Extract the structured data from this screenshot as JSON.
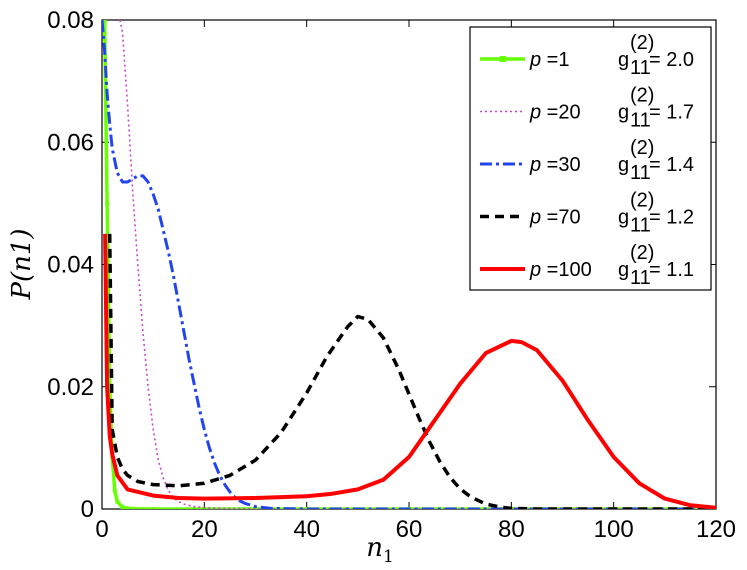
{
  "chart_data": {
    "type": "line",
    "xlabel": "n1",
    "ylabel": "P(n1)",
    "xlim": [
      0,
      120
    ],
    "ylim": [
      0,
      0.08
    ],
    "x_ticks": [
      0,
      20,
      40,
      60,
      80,
      100,
      120
    ],
    "y_ticks": [
      0,
      0.02,
      0.04,
      0.06,
      0.08
    ],
    "x_tick_labels": [
      "0",
      "20",
      "40",
      "60",
      "80",
      "100",
      "120"
    ],
    "y_tick_labels": [
      "0",
      "0.02",
      "0.04",
      "0.06",
      "0.08"
    ],
    "grid": false,
    "legend_position": "top-right",
    "series": [
      {
        "p_label": "p =1",
        "g2_label": "2.0",
        "color": "#66ff00",
        "style": "solid-marker",
        "x": [
          0,
          0.5,
          1,
          1.5,
          2,
          2.5,
          3,
          4,
          5,
          6,
          8,
          10,
          20,
          30,
          40,
          60,
          80,
          100,
          120
        ],
        "y": [
          0.08,
          0.08,
          0.05,
          0.02,
          0.0085,
          0.003,
          0.0012,
          0.0003,
          0.0001,
          3e-05,
          0,
          0,
          0,
          0,
          0,
          0,
          0,
          0,
          0
        ]
      },
      {
        "p_label": "p =20",
        "g2_label": "1.7",
        "color": "#cc44cc",
        "style": "dotted",
        "x": [
          3.5,
          4,
          5,
          6,
          7,
          8,
          9,
          10,
          11,
          12,
          13,
          14,
          15,
          16,
          18,
          20,
          25,
          30,
          40,
          60,
          80,
          100,
          120
        ],
        "y": [
          0.08,
          0.078,
          0.066,
          0.052,
          0.04,
          0.029,
          0.02,
          0.013,
          0.008,
          0.005,
          0.003,
          0.0018,
          0.0012,
          0.0008,
          0.0004,
          0.0002,
          0.0001,
          0,
          0,
          0,
          0,
          0,
          0
        ]
      },
      {
        "p_label": "p =30",
        "g2_label": "1.4",
        "color": "#2244ee",
        "style": "dash-dot",
        "x": [
          0,
          0.5,
          1,
          1.5,
          2,
          3,
          4,
          5,
          6,
          7,
          8,
          9,
          10,
          11,
          12,
          13,
          14,
          15,
          16,
          17,
          18,
          19,
          20,
          21,
          22,
          23,
          24,
          25,
          26,
          27,
          28,
          30,
          33,
          40,
          60,
          80,
          100,
          120
        ],
        "y": [
          0.08,
          0.075,
          0.068,
          0.063,
          0.059,
          0.055,
          0.0535,
          0.0535,
          0.054,
          0.0545,
          0.0545,
          0.0535,
          0.0515,
          0.049,
          0.0455,
          0.042,
          0.038,
          0.0335,
          0.029,
          0.0245,
          0.0205,
          0.0165,
          0.013,
          0.01,
          0.0075,
          0.0055,
          0.004,
          0.0028,
          0.0019,
          0.0013,
          0.0009,
          0.0004,
          0.0001,
          0,
          0,
          0,
          0,
          0
        ]
      },
      {
        "p_label": "p =70",
        "g2_label": "1.2",
        "color": "#000000",
        "style": "dashed",
        "x": [
          1.5,
          2,
          3,
          4,
          5,
          7,
          10,
          15,
          20,
          25,
          30,
          35,
          40,
          44,
          48,
          50,
          52,
          55,
          58,
          60,
          62,
          64,
          66,
          68,
          70,
          72,
          75,
          78,
          80,
          85,
          90,
          100,
          120
        ],
        "y": [
          0.045,
          0.013,
          0.0085,
          0.0065,
          0.0055,
          0.0045,
          0.004,
          0.0038,
          0.0042,
          0.0055,
          0.008,
          0.0125,
          0.019,
          0.025,
          0.0298,
          0.0315,
          0.031,
          0.028,
          0.0228,
          0.0188,
          0.0148,
          0.011,
          0.0078,
          0.0052,
          0.0033,
          0.002,
          0.0008,
          0.0003,
          0.0001,
          0,
          0,
          0,
          0
        ]
      },
      {
        "p_label": "p =100",
        "g2_label": "1.1",
        "color": "#ff0000",
        "style": "solid",
        "x": [
          0.6,
          1,
          1.5,
          2,
          3,
          5,
          10,
          15,
          20,
          30,
          40,
          45,
          50,
          55,
          60,
          65,
          70,
          75,
          80,
          82,
          85,
          90,
          95,
          100,
          105,
          110,
          115,
          120
        ],
        "y": [
          0.045,
          0.02,
          0.012,
          0.009,
          0.0055,
          0.0032,
          0.0022,
          0.0018,
          0.0017,
          0.0018,
          0.0021,
          0.0025,
          0.0032,
          0.0048,
          0.0085,
          0.0145,
          0.0205,
          0.0255,
          0.0275,
          0.0273,
          0.026,
          0.021,
          0.0145,
          0.0085,
          0.0042,
          0.0017,
          0.0006,
          0.0002
        ]
      }
    ]
  }
}
